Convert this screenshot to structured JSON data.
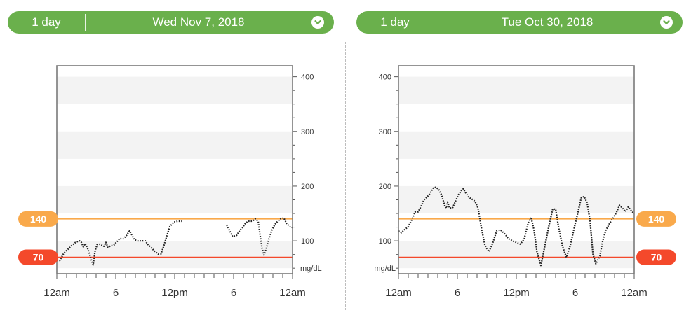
{
  "header_left": {
    "range": "1 day",
    "date": "Wed Nov 7, 2018"
  },
  "header_right": {
    "range": "1 day",
    "date": "Tue Oct 30, 2018"
  },
  "colors": {
    "pill": "#6ab04c",
    "high": "#f9a94b",
    "low": "#f4492b",
    "line": "#222222",
    "band": "#f3f3f3"
  },
  "icons": {
    "dropdown": "chevron-down-icon"
  },
  "chart_data": [
    {
      "type": "line",
      "date": "Wed Nov 7, 2018",
      "unit": "mg/dL",
      "y_axis_side": "right",
      "ylim": [
        40,
        420
      ],
      "y_ticks": [
        100,
        200,
        300,
        400
      ],
      "x_ticks": [
        "12am",
        "6",
        "12pm",
        "6",
        "12am"
      ],
      "xlim_hours": [
        0,
        24
      ],
      "thresholds": [
        {
          "label": "140",
          "value": 140,
          "kind": "high"
        },
        {
          "label": "70",
          "value": 70,
          "kind": "low"
        }
      ],
      "series": [
        {
          "segments": [
            [
              [
                0,
                64
              ],
              [
                0.3,
                64
              ],
              [
                0.7,
                77
              ],
              [
                1.1,
                84
              ],
              [
                1.5,
                91
              ],
              [
                1.9,
                97
              ],
              [
                2.3,
                100
              ],
              [
                2.5,
                97
              ],
              [
                2.7,
                89
              ],
              [
                2.9,
                95
              ],
              [
                3.1,
                88
              ],
              [
                3.3,
                78
              ],
              [
                3.5,
                66
              ],
              [
                3.7,
                56
              ],
              [
                3.9,
                82
              ],
              [
                4.1,
                93
              ],
              [
                4.4,
                94
              ],
              [
                4.6,
                92
              ],
              [
                4.8,
                90
              ],
              [
                5.0,
                97
              ],
              [
                5.2,
                88
              ],
              [
                5.5,
                91
              ],
              [
                5.8,
                92
              ],
              [
                6.1,
                98
              ],
              [
                6.4,
                104
              ],
              [
                6.8,
                104
              ],
              [
                7.1,
                110
              ],
              [
                7.4,
                118
              ],
              [
                7.6,
                112
              ],
              [
                7.9,
                102
              ],
              [
                8.2,
                100
              ],
              [
                8.6,
                100
              ],
              [
                9.0,
                100
              ],
              [
                9.3,
                93
              ],
              [
                9.6,
                88
              ],
              [
                9.9,
                82
              ],
              [
                10.3,
                76
              ],
              [
                10.6,
                76
              ],
              [
                10.9,
                91
              ],
              [
                11.2,
                109
              ],
              [
                11.5,
                126
              ],
              [
                11.9,
                134
              ],
              [
                12.3,
                136
              ],
              [
                12.8,
                136
              ]
            ],
            [
              [
                17.3,
                129
              ],
              [
                17.6,
                118
              ],
              [
                17.9,
                108
              ],
              [
                18.3,
                110
              ],
              [
                18.6,
                118
              ],
              [
                18.9,
                124
              ],
              [
                19.2,
                132
              ],
              [
                19.5,
                136
              ],
              [
                19.9,
                136
              ],
              [
                20.2,
                140
              ],
              [
                20.5,
                136
              ],
              [
                20.7,
                110
              ],
              [
                20.9,
                86
              ],
              [
                21.1,
                74
              ],
              [
                21.3,
                84
              ],
              [
                21.6,
                104
              ],
              [
                21.9,
                120
              ],
              [
                22.2,
                130
              ],
              [
                22.5,
                136
              ],
              [
                22.8,
                140
              ],
              [
                23.1,
                142
              ],
              [
                23.4,
                132
              ],
              [
                23.7,
                126
              ],
              [
                24,
                124
              ]
            ]
          ]
        }
      ]
    },
    {
      "type": "line",
      "date": "Tue Oct 30, 2018",
      "unit": "mg/dL",
      "y_axis_side": "left",
      "ylim": [
        40,
        420
      ],
      "y_ticks": [
        100,
        200,
        300,
        400
      ],
      "x_ticks": [
        "12am",
        "6",
        "12pm",
        "6",
        "12am"
      ],
      "xlim_hours": [
        0,
        24
      ],
      "thresholds": [
        {
          "label": "140",
          "value": 140,
          "kind": "high"
        },
        {
          "label": "70",
          "value": 70,
          "kind": "low"
        }
      ],
      "series": [
        {
          "segments": [
            [
              [
                0,
                118
              ],
              [
                0.3,
                115
              ],
              [
                0.6,
                120
              ],
              [
                1.0,
                126
              ],
              [
                1.4,
                140
              ],
              [
                1.7,
                153
              ],
              [
                2.0,
                153
              ],
              [
                2.3,
                163
              ],
              [
                2.6,
                175
              ],
              [
                2.9,
                180
              ],
              [
                3.2,
                186
              ],
              [
                3.5,
                196
              ],
              [
                3.8,
                198
              ],
              [
                4.1,
                194
              ],
              [
                4.4,
                183
              ],
              [
                4.7,
                165
              ],
              [
                4.9,
                160
              ],
              [
                5.0,
                171
              ],
              [
                5.2,
                160
              ],
              [
                5.5,
                160
              ],
              [
                5.8,
                172
              ],
              [
                6.1,
                184
              ],
              [
                6.4,
                192
              ],
              [
                6.6,
                195
              ],
              [
                6.9,
                186
              ],
              [
                7.2,
                179
              ],
              [
                7.5,
                176
              ],
              [
                7.8,
                172
              ],
              [
                8.1,
                160
              ],
              [
                8.4,
                128
              ],
              [
                8.8,
                92
              ],
              [
                9.2,
                80
              ],
              [
                9.6,
                96
              ],
              [
                10.0,
                118
              ],
              [
                10.4,
                120
              ],
              [
                10.8,
                113
              ],
              [
                11.2,
                104
              ],
              [
                11.6,
                100
              ],
              [
                12.0,
                97
              ],
              [
                12.4,
                94
              ],
              [
                12.8,
                103
              ],
              [
                13.2,
                132
              ],
              [
                13.5,
                143
              ],
              [
                13.8,
                120
              ],
              [
                14.1,
                80
              ],
              [
                14.5,
                55
              ],
              [
                14.9,
                90
              ],
              [
                15.3,
                126
              ],
              [
                15.7,
                158
              ],
              [
                16.0,
                158
              ],
              [
                16.3,
                125
              ],
              [
                16.7,
                90
              ],
              [
                17.1,
                70
              ],
              [
                17.5,
                92
              ],
              [
                17.9,
                124
              ],
              [
                18.3,
                154
              ],
              [
                18.6,
                178
              ],
              [
                18.9,
                181
              ],
              [
                19.2,
                170
              ],
              [
                19.5,
                138
              ],
              [
                19.8,
                76
              ],
              [
                20.1,
                58
              ],
              [
                20.5,
                72
              ],
              [
                20.8,
                100
              ],
              [
                21.1,
                119
              ],
              [
                21.5,
                132
              ],
              [
                21.8,
                140
              ],
              [
                22.2,
                152
              ],
              [
                22.5,
                165
              ],
              [
                22.8,
                160
              ],
              [
                23.1,
                153
              ],
              [
                23.4,
                162
              ],
              [
                23.7,
                155
              ],
              [
                24,
                150
              ]
            ]
          ]
        }
      ]
    }
  ]
}
